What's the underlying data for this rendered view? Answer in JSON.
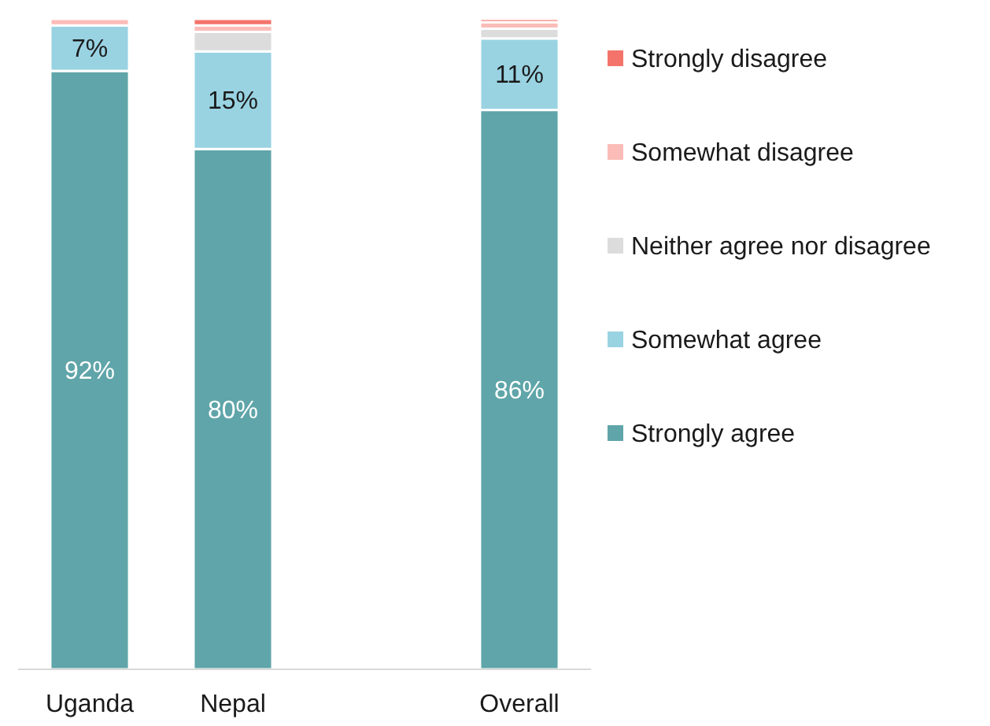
{
  "chart_data": {
    "type": "bar",
    "stacked": true,
    "categories": [
      "Uganda",
      "Nepal",
      null,
      "Overall"
    ],
    "ylim": [
      0,
      100
    ],
    "tick_labels": "x",
    "legend": "right",
    "series": [
      {
        "name": "Strongly agree",
        "color": "#5fa5a9",
        "values": [
          92,
          80,
          null,
          86
        ],
        "value_labels": [
          "92%",
          "80%",
          null,
          "86%"
        ]
      },
      {
        "name": "Somewhat agree",
        "color": "#99d3e2",
        "values": [
          7,
          15,
          null,
          11
        ],
        "value_labels": [
          "7%",
          "15%",
          null,
          "11%"
        ]
      },
      {
        "name": "Neither agree nor disagree",
        "color": "#dcdcdd",
        "values": [
          0,
          3,
          null,
          1.5
        ]
      },
      {
        "name": "Somewhat disagree",
        "color": "#fbbcb8",
        "values": [
          1,
          1,
          null,
          1
        ]
      },
      {
        "name": "Strongly disagree",
        "color": "#f4746b",
        "values": [
          0,
          1,
          null,
          0.5
        ]
      }
    ]
  }
}
